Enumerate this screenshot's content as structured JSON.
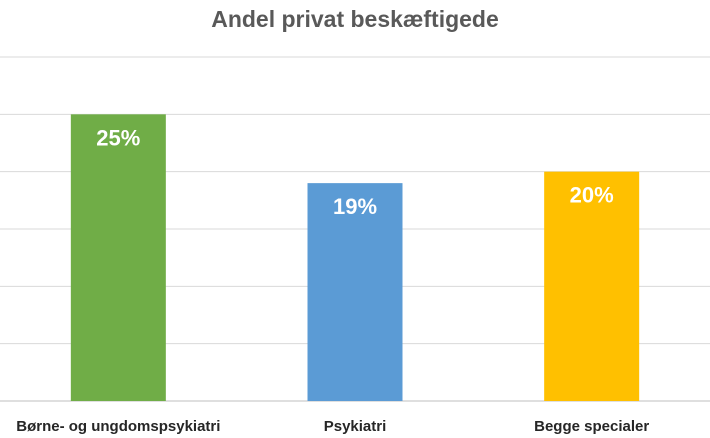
{
  "chart_data": {
    "type": "bar",
    "title": "Andel privat beskæftigede",
    "categories": [
      "Børne- og ungdomspsykiatri",
      "Psykiatri",
      "Begge specialer"
    ],
    "values": [
      25,
      19,
      20
    ],
    "value_labels": [
      "25%",
      "19%",
      "20%"
    ],
    "colors": [
      "#70AD47",
      "#5B9BD5",
      "#FFC000"
    ],
    "unit": "%",
    "ylim": [
      0,
      30
    ],
    "grid": true,
    "legend": "none"
  }
}
